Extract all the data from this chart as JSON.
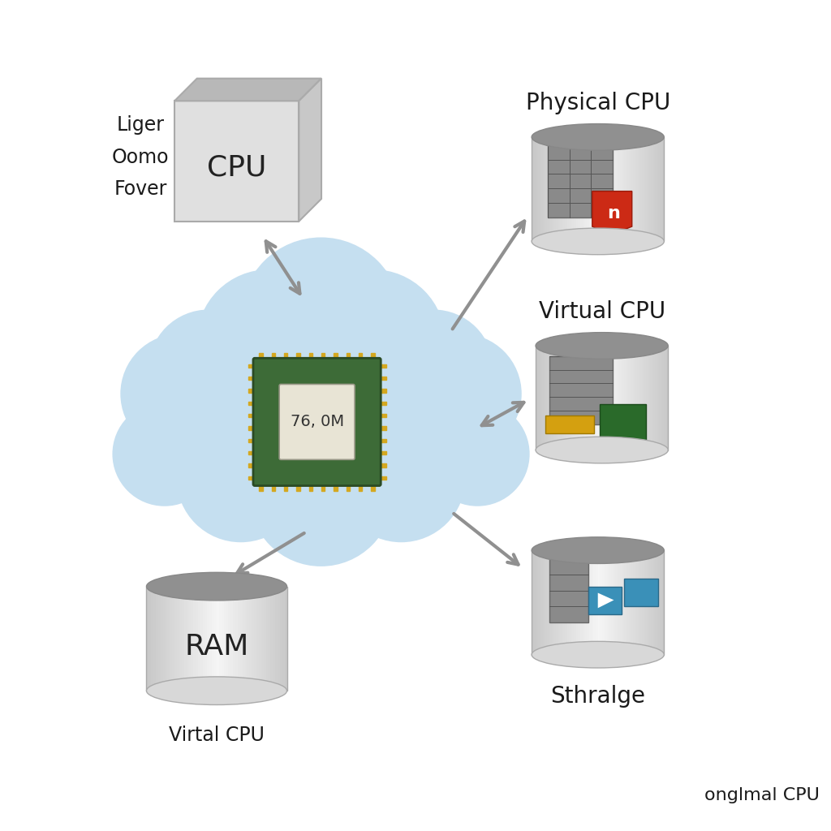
{
  "background_color": "#ffffff",
  "cloud_color": "#c5dff0",
  "cloud_alpha": 1.0,
  "cpu_chip_label": "76, 0M",
  "cpu_box_label": "CPU",
  "cpu_box_sublabel": "Liger\nOomo\nFover",
  "ram_label": "RAM",
  "ram_sublabel": "Virtal CPU",
  "physical_cpu_label": "Physical CPU",
  "virtual_cpu_label": "Virtual CPU",
  "storage_label": "Sthralge",
  "bottom_right_label": "onglmal CPU",
  "arrow_color": "#909090",
  "arrow_lw": 3.0,
  "text_color": "#1a1a1a",
  "font_size_title": 20,
  "font_size_sublabel": 17,
  "font_size_chip": 14,
  "font_size_bottom": 16,
  "font_size_box_cpu": 26,
  "font_size_ram": 26
}
